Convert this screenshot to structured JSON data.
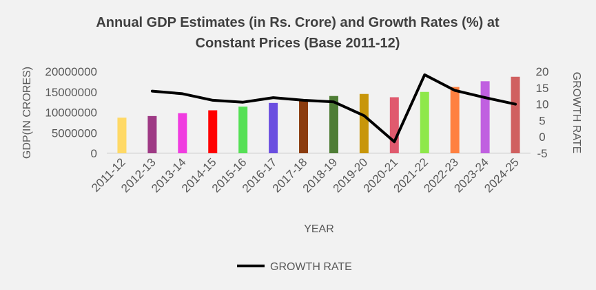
{
  "chart_data": {
    "type": "bar",
    "title_line1": "Annual GDP Estimates (in Rs. Crore) and Growth Rates (%) at",
    "title_line2": "Constant Prices (Base 2011-12)",
    "xlabel": "YEAR",
    "ylabel": "GDP(IN CRORES)",
    "y2label": "GROWTH RATE",
    "ylim": [
      0,
      20000000
    ],
    "y2lim": [
      -5,
      20
    ],
    "yticks": [
      "0",
      "5000000",
      "10000000",
      "15000000",
      "20000000"
    ],
    "y2ticks": [
      "-5",
      "0",
      "5",
      "10",
      "15",
      "20"
    ],
    "categories": [
      "2011-12",
      "2012-13",
      "2013-14",
      "2014-15",
      "2015-16",
      "2016-17",
      "2017-18",
      "2018-19",
      "2019-20",
      "2020-21",
      "2021-22",
      "2022-23",
      "2023-24",
      "2024-25"
    ],
    "bar_values": [
      8700000,
      9100000,
      9800000,
      10500000,
      11400000,
      12300000,
      13100000,
      14000000,
      14500000,
      13700000,
      15000000,
      16200000,
      17600000,
      18700000
    ],
    "bar_colors": [
      "#ffd966",
      "#9e3a85",
      "#f03ce0",
      "#ff0000",
      "#55e055",
      "#6a4ee0",
      "#8b3c0f",
      "#4e7d35",
      "#c8960a",
      "#e05a6e",
      "#8ee84a",
      "#ff8040",
      "#c060e0",
      "#d06060"
    ],
    "series": [
      {
        "name": "GROWTH RATE",
        "type": "line",
        "axis": "right",
        "color": "#000000",
        "values": [
          null,
          14,
          13.2,
          11.2,
          10.6,
          12,
          11.2,
          10.7,
          6.5,
          -1.5,
          19,
          14.2,
          12,
          10
        ]
      }
    ],
    "grid": false,
    "legend": "bottom"
  }
}
